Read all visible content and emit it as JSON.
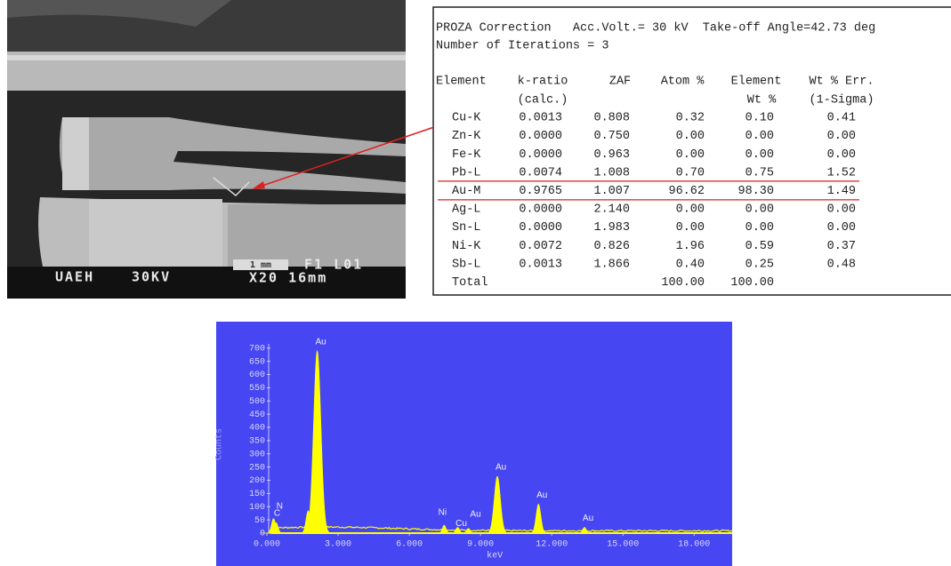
{
  "sem": {
    "labels": [
      "UAEH",
      "30KV",
      "1 mm",
      "F1 L01",
      "X20 16mm"
    ]
  },
  "table": {
    "header_lines": [
      "PROZA Correction   Acc.Volt.= 30 kV  Take-off Angle=42.73 deg",
      "Number of Iterations = 3"
    ],
    "columns": [
      [
        "Element"
      ],
      [
        "k-ratio",
        "(calc.)"
      ],
      [
        "ZAF"
      ],
      [
        "Atom %"
      ],
      [
        "Element",
        "Wt %"
      ],
      [
        "Wt % Err.",
        "(1-Sigma)"
      ]
    ],
    "rows": [
      [
        "Cu-K",
        "0.0013",
        "0.808",
        "0.32",
        "0.10",
        "0.41"
      ],
      [
        "Zn-K",
        "0.0000",
        "0.750",
        "0.00",
        "0.00",
        "0.00"
      ],
      [
        "Fe-K",
        "0.0000",
        "0.963",
        "0.00",
        "0.00",
        "0.00"
      ],
      [
        "Pb-L",
        "0.0074",
        "1.008",
        "0.70",
        "0.75",
        "1.52"
      ],
      [
        "Au-M",
        "0.9765",
        "1.007",
        "96.62",
        "98.30",
        "1.49"
      ],
      [
        "Ag-L",
        "0.0000",
        "2.140",
        "0.00",
        "0.00",
        "0.00"
      ],
      [
        "Sn-L",
        "0.0000",
        "1.983",
        "0.00",
        "0.00",
        "0.00"
      ],
      [
        "Ni-K",
        "0.0072",
        "0.826",
        "1.96",
        "0.59",
        "0.37"
      ],
      [
        "Sb-L",
        "0.0013",
        "1.866",
        "0.40",
        "0.25",
        "0.48"
      ]
    ],
    "total": {
      "label": "Total",
      "atom": "100.00",
      "wt": "100.00"
    },
    "highlight_row": 4
  },
  "spectrum": {
    "x_label": "keV",
    "y_label": "Counts",
    "xlim": [
      0,
      19.6
    ],
    "ylim": [
      0,
      800
    ],
    "xticks": [
      {
        "value": 0,
        "label": "0.000"
      },
      {
        "value": 3,
        "label": "3.000"
      },
      {
        "value": 6,
        "label": "6.000"
      },
      {
        "value": 9,
        "label": "9.000"
      },
      {
        "value": 12,
        "label": "12.000"
      },
      {
        "value": 15,
        "label": "15.000"
      },
      {
        "value": 18,
        "label": "18.000"
      }
    ],
    "yticks": [
      0,
      50,
      100,
      150,
      200,
      250,
      300,
      350,
      400,
      450,
      500,
      550,
      600,
      650,
      700
    ],
    "color": "#ffff00",
    "background": "#4646f2",
    "peaks": [
      {
        "label": "C",
        "keV": 0.28,
        "counts": 55
      },
      {
        "label": "N",
        "keV": 0.39,
        "counts": 40
      },
      {
        "label": null,
        "keV": 1.74,
        "counts": 85
      },
      {
        "label": "Au",
        "keV": 2.12,
        "counts": 690
      },
      {
        "label": "Ni",
        "keV": 7.47,
        "counts": 30
      },
      {
        "label": "Cu",
        "keV": 8.04,
        "counts": 22
      },
      {
        "label": "Au",
        "keV": 8.49,
        "counts": 18
      },
      {
        "label": "Au",
        "keV": 9.71,
        "counts": 215
      },
      {
        "label": "Au",
        "keV": 11.44,
        "counts": 110
      },
      {
        "label": "Au",
        "keV": 13.38,
        "counts": 22
      }
    ]
  }
}
